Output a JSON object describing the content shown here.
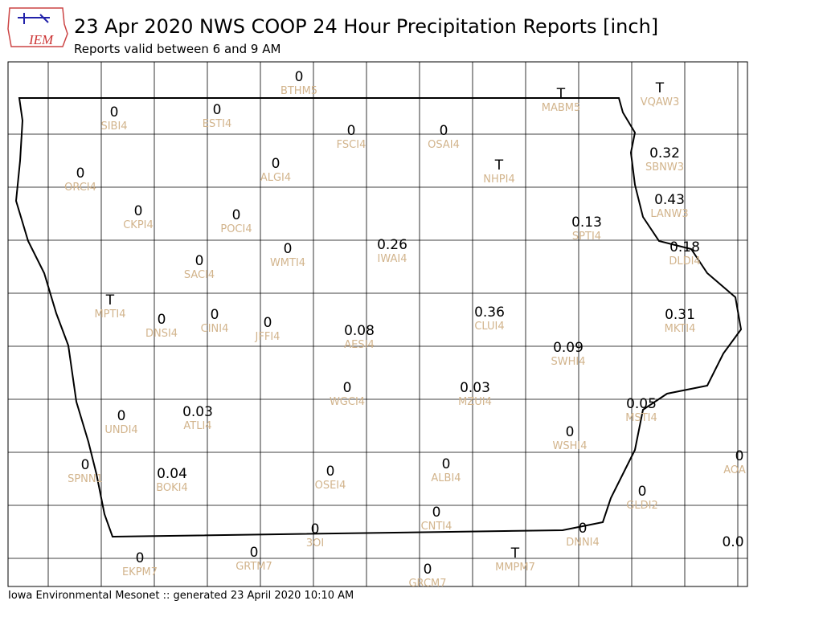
{
  "header": {
    "logo_text": "IEM",
    "title": "23 Apr 2020 NWS COOP 24 Hour Precipitation Reports [inch]",
    "subtitle": "Reports valid between 6 and 9 AM"
  },
  "footer": "Iowa Environmental Mesonet :: generated 23 April 2020 10:10 AM",
  "stations": [
    {
      "value": "0",
      "id": "BTHM5"
    },
    {
      "value": "0",
      "id": "SIBI4"
    },
    {
      "value": "0",
      "id": "ESTI4"
    },
    {
      "value": "T",
      "id": "MABM5"
    },
    {
      "value": "T",
      "id": "VQAW3"
    },
    {
      "value": "0",
      "id": "FSCI4"
    },
    {
      "value": "0",
      "id": "OSAI4"
    },
    {
      "value": "0.32",
      "id": "SBNW3"
    },
    {
      "value": "T",
      "id": "NHPI4"
    },
    {
      "value": "0",
      "id": "ALGI4"
    },
    {
      "value": "0",
      "id": "ORCI4"
    },
    {
      "value": "0.43",
      "id": "LANW3"
    },
    {
      "value": "0",
      "id": "CKPI4"
    },
    {
      "value": "0",
      "id": "POCI4"
    },
    {
      "value": "0.13",
      "id": "SPTI4"
    },
    {
      "value": "0.26",
      "id": "IWAI4"
    },
    {
      "value": "0.18",
      "id": "DLDI4"
    },
    {
      "value": "0",
      "id": "WMTI4"
    },
    {
      "value": "0",
      "id": "SACI4"
    },
    {
      "value": "T",
      "id": "MPTI4"
    },
    {
      "value": "0.36",
      "id": "CLUI4"
    },
    {
      "value": "0.31",
      "id": "MKTI4"
    },
    {
      "value": "0",
      "id": "DNSI4"
    },
    {
      "value": "0",
      "id": "CINI4"
    },
    {
      "value": "0",
      "id": "JFFI4"
    },
    {
      "value": "0.08",
      "id": "AESI4"
    },
    {
      "value": "0.09",
      "id": "SWHI4"
    },
    {
      "value": "0",
      "id": "WGCI4"
    },
    {
      "value": "0.03",
      "id": "MZUI4"
    },
    {
      "value": "0.05",
      "id": "MSTI4"
    },
    {
      "value": "0.03",
      "id": "ATLI4"
    },
    {
      "value": "0",
      "id": "UNDI4"
    },
    {
      "value": "0",
      "id": "WSHI4"
    },
    {
      "value": "0",
      "id": "SPNN1"
    },
    {
      "value": "0",
      "id": "AOA"
    },
    {
      "value": "0",
      "id": "ALBI4"
    },
    {
      "value": "0.04",
      "id": "BOKI4"
    },
    {
      "value": "0",
      "id": "OSEI4"
    },
    {
      "value": "0",
      "id": "GLDI2"
    },
    {
      "value": "0",
      "id": "CNTI4"
    },
    {
      "value": "0",
      "id": "3OI"
    },
    {
      "value": "0",
      "id": "DNNI4"
    },
    {
      "value": "0.0"
    },
    {
      "value": "0",
      "id": "EKPM7"
    },
    {
      "value": "0",
      "id": "GRTM7"
    },
    {
      "value": "T",
      "id": "MMPM7"
    },
    {
      "value": "0",
      "id": "GRCM7"
    }
  ]
}
